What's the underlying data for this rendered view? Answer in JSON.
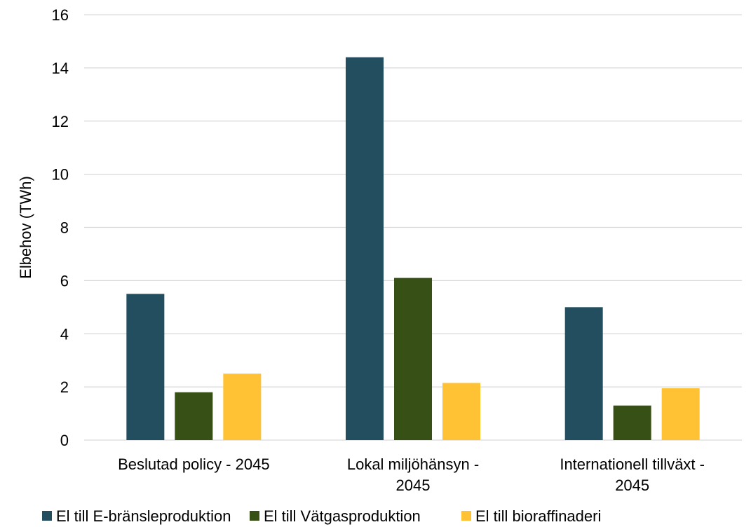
{
  "chart_data": {
    "type": "bar",
    "categories": [
      [
        "Beslutad policy - 2045"
      ],
      [
        "Lokal miljöhänsyn -",
        "2045"
      ],
      [
        "Internationell tillväxt -",
        "2045"
      ]
    ],
    "series": [
      {
        "name": "El till E-bränsleproduktion",
        "color": "#234e5f",
        "values": [
          5.5,
          14.4,
          5.0
        ]
      },
      {
        "name": "El till Vätgasproduktion",
        "color": "#375015",
        "values": [
          1.8,
          6.1,
          1.3
        ]
      },
      {
        "name": "El till bioraffinaderi",
        "color": "#ffc234",
        "values": [
          2.5,
          2.15,
          1.95
        ]
      }
    ],
    "ylabel": "Elbehov (TWh)",
    "ylim": [
      0,
      16
    ],
    "yticks": [
      "0",
      "2",
      "4",
      "6",
      "8",
      "10",
      "12",
      "14",
      "16"
    ],
    "grid": true,
    "legend_position": "bottom"
  }
}
